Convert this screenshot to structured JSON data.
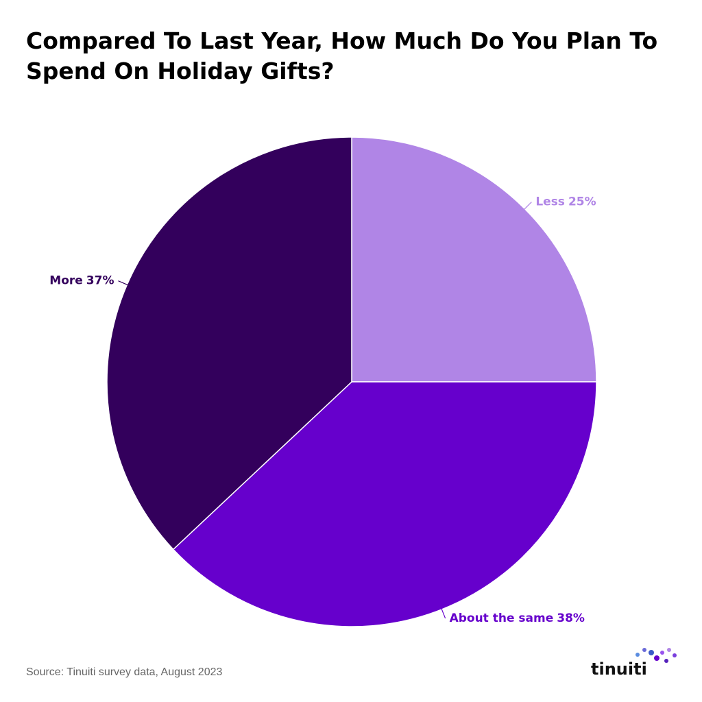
{
  "chart_data": {
    "type": "pie",
    "title": "Compared To Last Year, How Much Do You Plan To Spend On Holiday Gifts?",
    "categories": [
      "Less",
      "About the same",
      "More"
    ],
    "values": [
      25,
      38,
      37
    ],
    "value_labels": [
      "25%",
      "38%",
      "37%"
    ],
    "colors": [
      "#b085e6",
      "#6600cc",
      "#33005c"
    ]
  },
  "source": "Source: Tinuiti survey data, August 2023",
  "logo": "tinuiti"
}
